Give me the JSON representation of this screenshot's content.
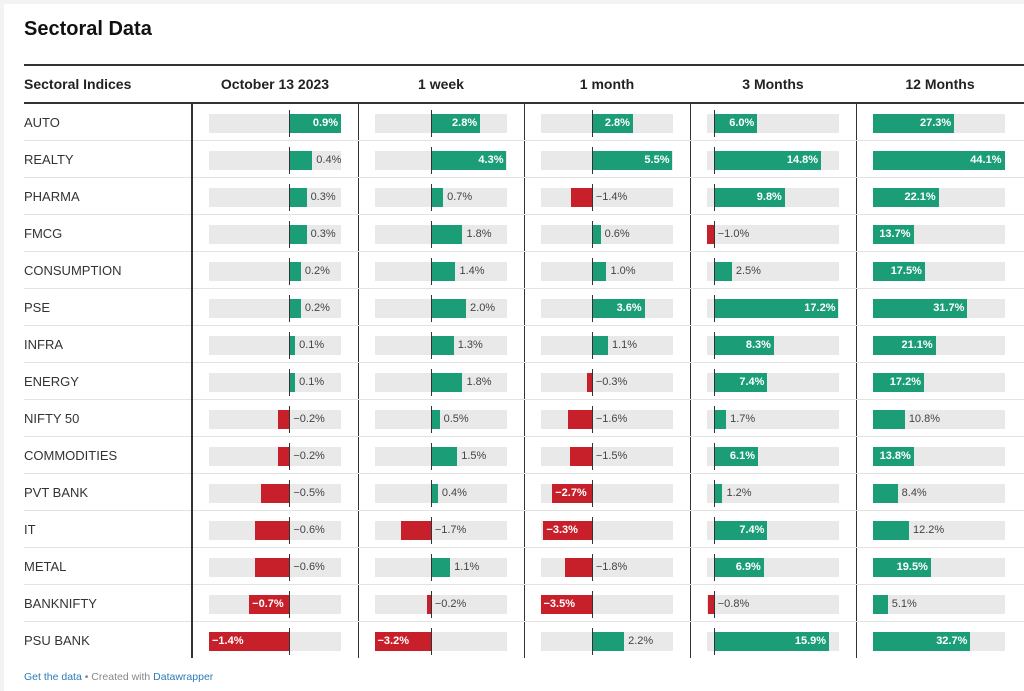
{
  "title": "Sectoral Data",
  "footer": {
    "get_data": "Get the data",
    "separator": " • Created with ",
    "created_with": "Datawrapper"
  },
  "colors": {
    "positive": "#1b9e77",
    "negative": "#c8202a",
    "track": "#e9e9e9"
  },
  "chart_data": {
    "type": "table",
    "row_header": "Sectoral Indices",
    "columns": [
      {
        "label": "October 13 2023",
        "range": [
          -1.4,
          0.9
        ]
      },
      {
        "label": "1 week",
        "range": [
          -3.2,
          4.3
        ]
      },
      {
        "label": "1 month",
        "range": [
          -3.5,
          5.5
        ]
      },
      {
        "label": "3 Months",
        "range": [
          -1.0,
          17.2
        ]
      },
      {
        "label": "12 Months",
        "range": [
          0,
          44.1
        ]
      }
    ],
    "rows": [
      {
        "name": "AUTO",
        "values": [
          0.9,
          2.8,
          2.8,
          6.0,
          27.3
        ]
      },
      {
        "name": "REALTY",
        "values": [
          0.4,
          4.3,
          5.5,
          14.8,
          44.1
        ]
      },
      {
        "name": "PHARMA",
        "values": [
          0.3,
          0.7,
          -1.4,
          9.8,
          22.1
        ]
      },
      {
        "name": "FMCG",
        "values": [
          0.3,
          1.8,
          0.6,
          -1.0,
          13.7
        ]
      },
      {
        "name": "CONSUMPTION",
        "values": [
          0.2,
          1.4,
          1.0,
          2.5,
          17.5
        ]
      },
      {
        "name": "PSE",
        "values": [
          0.2,
          2.0,
          3.6,
          17.2,
          31.7
        ]
      },
      {
        "name": "INFRA",
        "values": [
          0.1,
          1.3,
          1.1,
          8.3,
          21.1
        ]
      },
      {
        "name": "ENERGY",
        "values": [
          0.1,
          1.8,
          -0.3,
          7.4,
          17.2
        ]
      },
      {
        "name": "NIFTY 50",
        "values": [
          -0.2,
          0.5,
          -1.6,
          1.7,
          10.8
        ]
      },
      {
        "name": "COMMODITIES",
        "values": [
          -0.2,
          1.5,
          -1.5,
          6.1,
          13.8
        ]
      },
      {
        "name": "PVT BANK",
        "values": [
          -0.5,
          0.4,
          -2.7,
          1.2,
          8.4
        ]
      },
      {
        "name": "IT",
        "values": [
          -0.6,
          -1.7,
          -3.3,
          7.4,
          12.2
        ]
      },
      {
        "name": "METAL",
        "values": [
          -0.6,
          1.1,
          -1.8,
          6.9,
          19.5
        ]
      },
      {
        "name": "BANKNIFTY",
        "values": [
          -0.7,
          -0.2,
          -3.5,
          -0.8,
          5.1
        ]
      },
      {
        "name": "PSU BANK",
        "values": [
          -1.4,
          -3.2,
          2.2,
          15.9,
          32.7
        ]
      }
    ]
  }
}
